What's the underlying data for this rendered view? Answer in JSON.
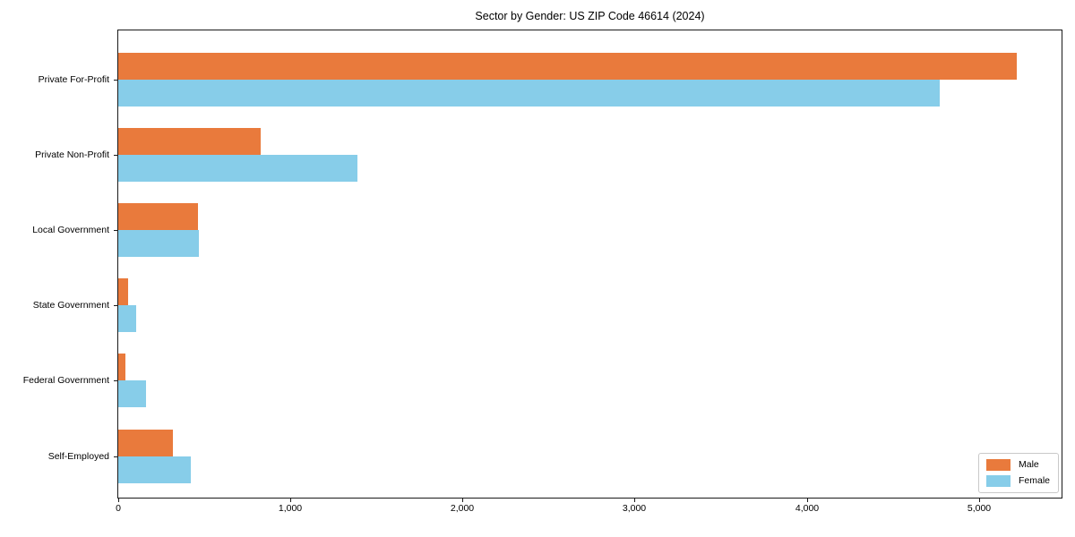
{
  "chart_data": {
    "type": "bar",
    "orientation": "horizontal",
    "title": "Sector by Gender: US ZIP Code 46614 (2024)",
    "categories": [
      "Private For-Profit",
      "Private Non-Profit",
      "Local Government",
      "State Government",
      "Federal Government",
      "Self-Employed"
    ],
    "series": [
      {
        "name": "Male",
        "color": "#e97a3c",
        "values": [
          5220,
          830,
          465,
          55,
          40,
          320
        ]
      },
      {
        "name": "Female",
        "color": "#87cde9",
        "values": [
          4770,
          1390,
          470,
          105,
          160,
          420
        ]
      }
    ],
    "xlabel": "",
    "ylabel": "",
    "xlim": [
      0,
      5480
    ],
    "xticks": [
      0,
      1000,
      2000,
      3000,
      4000,
      5000
    ],
    "xtick_labels": [
      "0",
      "1,000",
      "2,000",
      "3,000",
      "4,000",
      "5,000"
    ],
    "legend_position": "lower right",
    "grid": false,
    "background": "#ffffff",
    "spine_color": "#1a1a1a"
  }
}
